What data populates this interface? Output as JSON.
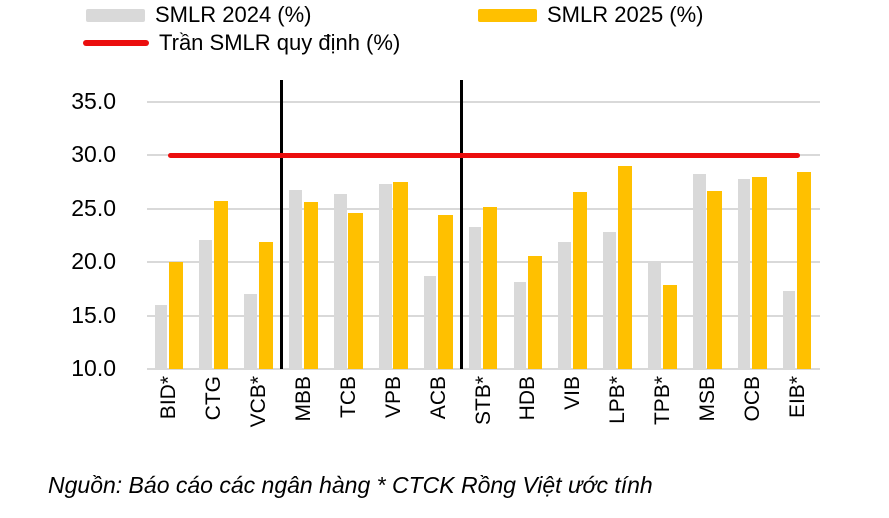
{
  "legend": {
    "items": [
      {
        "label": "SMLR 2024 (%)",
        "color": "#d9d9d9",
        "type": "box"
      },
      {
        "label": "SMLR 2025 (%)",
        "color": "#ffc000",
        "type": "box"
      },
      {
        "label": "Trần SMLR quy định (%)",
        "color": "#eb0e0e",
        "type": "line"
      }
    ]
  },
  "chart_data": {
    "type": "bar",
    "categories": [
      "BID*",
      "CTG",
      "VCB*",
      "MBB",
      "TCB",
      "VPB",
      "ACB",
      "STB*",
      "HDB",
      "VIB",
      "LPB*",
      "TPB*",
      "MSB",
      "OCB",
      "EIB*"
    ],
    "series": [
      {
        "name": "SMLR 2024 (%)",
        "color": "#d9d9d9",
        "values": [
          16.0,
          22.1,
          17.0,
          26.8,
          26.4,
          27.3,
          18.7,
          23.3,
          18.1,
          21.9,
          22.8,
          20.0,
          28.3,
          27.8,
          17.3
        ]
      },
      {
        "name": "SMLR 2025 (%)",
        "color": "#ffc000",
        "values": [
          20.0,
          25.7,
          21.9,
          25.6,
          24.6,
          27.5,
          24.4,
          25.2,
          20.6,
          26.6,
          29.0,
          17.9,
          26.7,
          28.0,
          28.4
        ]
      }
    ],
    "reference_line": {
      "name": "Trần SMLR quy định (%)",
      "value": 30.0,
      "color": "#eb0e0e"
    },
    "ylim": [
      10.0,
      35.0
    ],
    "yticks": [
      35.0,
      30.0,
      25.0,
      20.0,
      15.0,
      10.0
    ],
    "ytick_labels": [
      "35.0",
      "30.0",
      "25.0",
      "20.0",
      "15.0",
      "10.0"
    ],
    "group_dividers_before_index": [
      3,
      7
    ],
    "grid": true,
    "legend_position": "top-left"
  },
  "source_note": "Nguồn: Báo cáo các ngân hàng * CTCK Rồng Việt ước tính"
}
